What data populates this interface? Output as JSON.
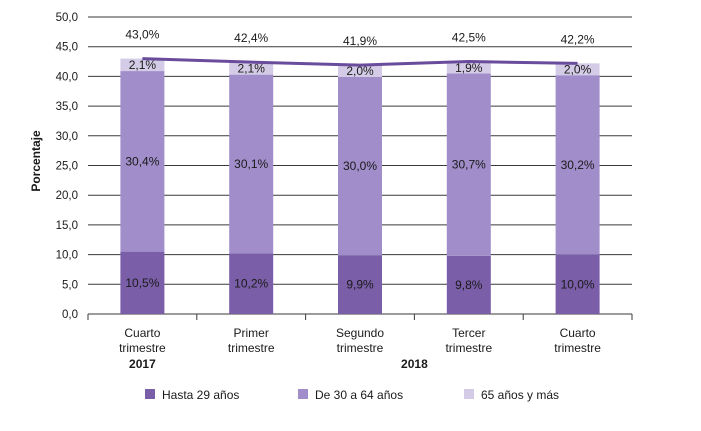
{
  "chart_data": {
    "type": "bar",
    "stacked": true,
    "ylabel": "Porcentaje",
    "xlabel": "",
    "ylim": [
      0,
      50
    ],
    "yticks": [
      "0,0",
      "5,0",
      "10,0",
      "15,0",
      "20,0",
      "25,0",
      "30,0",
      "35,0",
      "40,0",
      "45,0",
      "50,0"
    ],
    "grid": true,
    "legend_position": "bottom",
    "categories": [
      [
        "Cuarto",
        "trimestre"
      ],
      [
        "Primer",
        "trimestre"
      ],
      [
        "Segundo",
        "trimestre"
      ],
      [
        "Tercer",
        "trimestre"
      ],
      [
        "Cuarto",
        "trimestre"
      ]
    ],
    "year_labels": [
      {
        "text": "2017",
        "category_index": 0
      },
      {
        "text": "2018",
        "category_index": 2.5
      }
    ],
    "series": [
      {
        "name": "Hasta 29 años",
        "color": "#7a5ea8",
        "values": [
          10.5,
          10.2,
          9.9,
          9.8,
          10.0
        ],
        "labels": [
          "10,5%",
          "10,2%",
          "9,9%",
          "9,8%",
          "10,0%"
        ]
      },
      {
        "name": "De 30 a 64 años",
        "color": "#a08dc9",
        "values": [
          30.4,
          30.1,
          30.0,
          30.7,
          30.2
        ],
        "labels": [
          "30,4%",
          "30,1%",
          "30,0%",
          "30,7%",
          "30,2%"
        ]
      },
      {
        "name": "65 años y más",
        "color": "#d4cce6",
        "values": [
          2.1,
          2.1,
          2.0,
          1.9,
          2.0
        ],
        "labels": [
          "2,1%",
          "2,1%",
          "2,0%",
          "1,9%",
          "2,0%"
        ]
      }
    ],
    "total_line": {
      "color": "#6a4c9c",
      "values": [
        43.0,
        42.4,
        41.9,
        42.5,
        42.2
      ],
      "labels": [
        "43,0%",
        "42,4%",
        "41,9%",
        "42,5%",
        "42,2%"
      ]
    }
  }
}
